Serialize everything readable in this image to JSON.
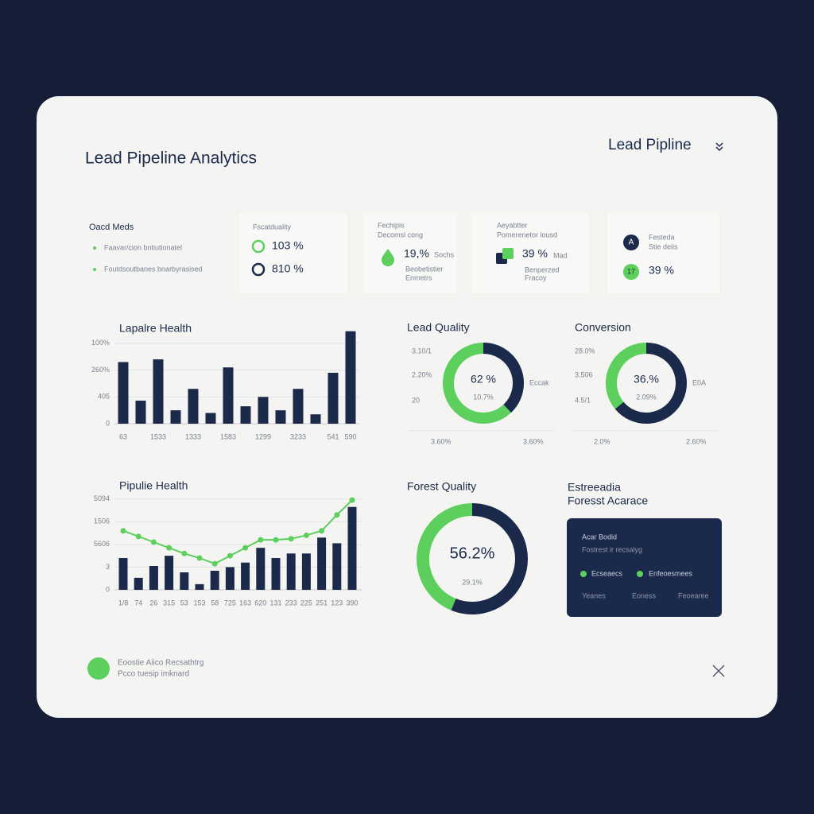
{
  "header": {
    "title": "Lead Pipeline Analytics",
    "dropdown": "Lead Pipline"
  },
  "summary": {
    "title": "Oacd Meds",
    "items": [
      "Faavar/cion bntiutionatel",
      "Foutdsoutbanes bnarbyrasised"
    ]
  },
  "kpis": [
    {
      "label": "Fscatduality",
      "rows": [
        "103 %",
        "810 %"
      ]
    },
    {
      "label": "Fechipis",
      "sublabel": "Decomsl cong",
      "value": "19,%",
      "unit": "Sochs",
      "notes": [
        "Beobetistier",
        "Enmetrs"
      ]
    },
    {
      "label": "Aeyabtter",
      "sublabel": "Pomerenetor lousd",
      "value": "39 %",
      "unit": "Mad",
      "notes": [
        "Benperzed",
        "Fracoy"
      ]
    },
    {
      "icon": "A",
      "label": "Festeda",
      "sublabel": "Stie deiis",
      "badge": "17",
      "value": "39 %"
    }
  ],
  "chart_data": [
    {
      "type": "bar",
      "title": "Lapalre Health",
      "color": "#1b2a4a",
      "categories": [
        "63",
        null,
        "1533",
        null,
        "1333",
        null,
        "1583",
        null,
        "1299",
        null,
        "3233",
        null,
        "541",
        "590"
      ],
      "values": [
        2.3,
        0.86,
        2.4,
        0.5,
        1.3,
        0.4,
        2.1,
        0.65,
        1.0,
        0.5,
        1.3,
        0.35,
        1.9,
        3.45
      ],
      "ylim": [
        0,
        3.5
      ],
      "yticks": [
        0,
        {
          "value": 1,
          "label": "405"
        },
        {
          "value": 2,
          "label": "260%"
        },
        {
          "value": 3,
          "label": "100%"
        }
      ],
      "grid": true
    },
    {
      "type": "combo",
      "title": "Pipulie Health",
      "categories": [
        "1/8",
        "74",
        "26",
        "315",
        "53",
        "153",
        "58",
        "725",
        "163",
        "620",
        "131",
        "233",
        "225",
        "251",
        "123",
        "390"
      ],
      "series": [
        {
          "type": "bar",
          "color": "#1b2a4a",
          "values": [
            1.4,
            0.53,
            1.05,
            1.5,
            0.77,
            0.25,
            0.84,
            1.0,
            1.2,
            1.85,
            1.4,
            1.6,
            1.6,
            2.3,
            2.05,
            3.65
          ]
        },
        {
          "type": "line",
          "color": "#5ccf5c",
          "values": [
            2.6,
            2.35,
            2.1,
            1.85,
            1.6,
            1.4,
            1.15,
            1.5,
            1.85,
            2.2,
            2.2,
            2.25,
            2.4,
            2.6,
            3.3,
            3.95
          ]
        }
      ],
      "ylim": [
        0,
        4.2
      ],
      "yticks": [
        0,
        {
          "value": 1,
          "label": "3"
        },
        {
          "value": 2,
          "label": "5606"
        },
        {
          "value": 3,
          "label": "1506"
        },
        {
          "value": 4,
          "label": "5094"
        }
      ],
      "grid": true
    },
    {
      "type": "donut",
      "title": "Lead Quality",
      "center_label": "62 %",
      "center_sublabel": "10.7%",
      "values": [
        38,
        62
      ],
      "colors": [
        "#1b2a4a",
        "#5ccf5c"
      ],
      "annotations": [
        "3.10/1",
        "2.20%",
        "20",
        "Eccak",
        "3.60%",
        "3.60%"
      ]
    },
    {
      "type": "donut",
      "title": "Conversion",
      "center_label": "36.%",
      "center_sublabel": "2.09%",
      "values": [
        64,
        36
      ],
      "colors": [
        "#1b2a4a",
        "#5ccf5c"
      ],
      "annotations": [
        "28.0%",
        "3.506",
        "4.5/1",
        "E0A",
        "2.0%",
        "2.60%"
      ]
    },
    {
      "type": "donut",
      "title": "Forest Quality",
      "center_label": "56.2%",
      "center_sublabel": "29.1%",
      "values": [
        56.2,
        43.8
      ],
      "colors": [
        "#1b2a4a",
        "#5ccf5c"
      ]
    }
  ],
  "forecast": {
    "title": [
      "Estreeadia",
      "Foresst Acarace"
    ],
    "card": {
      "title": "Acar Bodid",
      "subtitle": "Fostrest ir recsalyg",
      "legend": [
        "Ecseaecs",
        "Enfeoesmees"
      ],
      "footer": [
        "Yeanes",
        "Eoness",
        "Feoearee"
      ]
    }
  },
  "footer": {
    "lines": [
      "Eoostie Aiico Recsathtrg",
      "Pcco tuesip imknard"
    ]
  }
}
